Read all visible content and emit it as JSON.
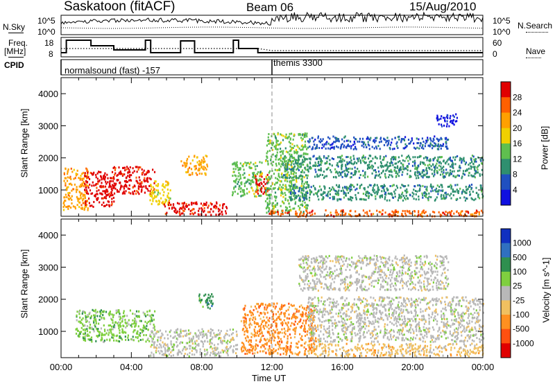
{
  "header": {
    "station": "Saskatoon (fitACF)",
    "beam": "Beam 06",
    "date": "15/Aug/2010"
  },
  "strip_labels": {
    "nsky": "N.Sky",
    "nsearch": "N.Search",
    "freq_line1": "Freq.",
    "freq_line2": "[MHz]",
    "nave": "Nave",
    "cpid": "CPID",
    "nsky_ticks": [
      "10^5",
      "10^0"
    ],
    "nsearch_ticks": [
      "10^5",
      "10^0"
    ],
    "freq_ticks": [
      "18",
      "8"
    ],
    "nave_ticks": [
      "60",
      "0"
    ]
  },
  "cpid_segments": [
    {
      "start_hour": 0.0,
      "label": "normalsound (fast) -157"
    },
    {
      "start_hour": 12.0,
      "label": "themis 3300"
    }
  ],
  "chart_data": [
    {
      "type": "heatmap",
      "name": "power",
      "xlabel": "Time UT",
      "ylabel": "Slant Range [km]",
      "xlim": [
        0,
        24
      ],
      "ylim": [
        180,
        4500
      ],
      "x_ticks": [
        "00:00",
        "04:00",
        "08:00",
        "12:00",
        "16:00",
        "20:00",
        "00:00"
      ],
      "y_ticks": [
        1000,
        2000,
        3000,
        4000
      ],
      "colorbar": {
        "label": "Power [dB]",
        "ticks": [
          "28",
          "24",
          "20",
          "16",
          "12",
          "8",
          "4"
        ],
        "colors": [
          "#e00000",
          "#ff6000",
          "#ffa000",
          "#f0d000",
          "#5fbf4f",
          "#2f8f6f",
          "#2050c0",
          "#1010e0"
        ]
      },
      "regions": [
        {
          "t0": 0.1,
          "t1": 1.5,
          "r0": 400,
          "r1": 1700,
          "level": 2
        },
        {
          "t0": 1.3,
          "t1": 3.0,
          "r0": 500,
          "r1": 1600,
          "level": 0
        },
        {
          "t0": 2.8,
          "t1": 5.3,
          "r0": 900,
          "r1": 1750,
          "level": 0
        },
        {
          "t0": 5.0,
          "t1": 6.2,
          "r0": 550,
          "r1": 1300,
          "level": 3
        },
        {
          "t0": 5.8,
          "t1": 9.5,
          "r0": 250,
          "r1": 650,
          "level": 0
        },
        {
          "t0": 6.8,
          "t1": 8.3,
          "r0": 1500,
          "r1": 2100,
          "level": 2
        },
        {
          "t0": 9.7,
          "t1": 11.4,
          "r0": 800,
          "r1": 1900,
          "level": 4
        },
        {
          "t0": 11.0,
          "t1": 11.8,
          "r0": 900,
          "r1": 1500,
          "level": 0
        },
        {
          "t0": 11.6,
          "t1": 14.0,
          "r0": 300,
          "r1": 2800,
          "level": 4
        },
        {
          "t0": 12.5,
          "t1": 24.0,
          "r0": 1400,
          "r1": 2100,
          "level": 5
        },
        {
          "t0": 13.0,
          "t1": 24.0,
          "r0": 700,
          "r1": 1200,
          "level": 5
        },
        {
          "t0": 14.0,
          "t1": 22.0,
          "r0": 2300,
          "r1": 2700,
          "level": 6
        },
        {
          "t0": 21.3,
          "t1": 22.5,
          "r0": 3000,
          "r1": 3400,
          "level": 7
        },
        {
          "t0": 11.8,
          "t1": 24.0,
          "r0": 200,
          "r1": 400,
          "level": 1
        }
      ]
    },
    {
      "type": "heatmap",
      "name": "velocity",
      "xlabel": "Time UT",
      "ylabel": "Slant Range [km]",
      "xlim": [
        0,
        24
      ],
      "ylim": [
        180,
        4500
      ],
      "x_ticks": [
        "00:00",
        "04:00",
        "08:00",
        "12:00",
        "16:00",
        "20:00",
        "00:00"
      ],
      "y_ticks": [
        1000,
        2000,
        3000,
        4000
      ],
      "colorbar": {
        "label": "Velocity [m s^-1]",
        "ticks": [
          "1000",
          "500",
          "100",
          "25",
          "-25",
          "-100",
          "-500",
          "-1000"
        ],
        "colors": [
          "#1030c0",
          "#3070c0",
          "#2f8f4f",
          "#7fcf3f",
          "#b8b8b8",
          "#f0c060",
          "#ff9020",
          "#ff5010",
          "#e00000"
        ]
      },
      "regions": [
        {
          "t0": 0.8,
          "t1": 5.3,
          "r0": 700,
          "r1": 1700,
          "level": 3
        },
        {
          "t0": 5.0,
          "t1": 10.0,
          "r0": 250,
          "r1": 1100,
          "level": 4
        },
        {
          "t0": 7.8,
          "t1": 8.6,
          "r0": 1700,
          "r1": 2200,
          "level": 2
        },
        {
          "t0": 10.2,
          "t1": 14.5,
          "r0": 300,
          "r1": 1900,
          "level": 6
        },
        {
          "t0": 14.0,
          "t1": 24.0,
          "r0": 700,
          "r1": 2100,
          "level": 4
        },
        {
          "t0": 13.5,
          "t1": 22.0,
          "r0": 2300,
          "r1": 3400,
          "level": 4
        },
        {
          "t0": 14.0,
          "t1": 24.0,
          "r0": 250,
          "r1": 650,
          "level": 5
        }
      ]
    }
  ]
}
